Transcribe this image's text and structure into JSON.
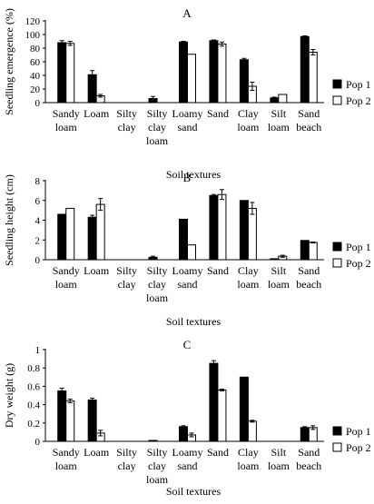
{
  "chart_data": [
    {
      "type": "bar",
      "title": "A",
      "xlabel": "Soil textures",
      "ylabel": "Seedling emergence (%)",
      "ylim": [
        0,
        120
      ],
      "yticks": [
        "0",
        "20",
        "40",
        "60",
        "80",
        "100",
        "120"
      ],
      "grid": false,
      "legend_position": "right",
      "categories": [
        [
          "Sandy",
          "loam"
        ],
        [
          "Loam"
        ],
        [
          "Silty",
          "clay"
        ],
        [
          "Silty",
          "clay",
          "loam"
        ],
        [
          "Loamy",
          "sand"
        ],
        [
          "Sand"
        ],
        [
          "Clay",
          "loam"
        ],
        [
          "Silt",
          "loam"
        ],
        [
          "Sand",
          "beach"
        ]
      ],
      "series": [
        {
          "name": "Pop 1",
          "color": "#000000",
          "values": [
            88,
            41,
            0,
            6,
            89,
            91,
            63,
            7,
            97
          ],
          "errors": [
            3,
            6,
            0,
            3,
            1,
            1,
            2,
            1,
            1
          ]
        },
        {
          "name": "Pop 2",
          "color": "#ffffff",
          "values": [
            87,
            10,
            0,
            0,
            71,
            86,
            24,
            12,
            74
          ],
          "errors": [
            3,
            2,
            0,
            0,
            0,
            3,
            6,
            0,
            4
          ]
        }
      ]
    },
    {
      "type": "bar",
      "title": "B",
      "xlabel": "Soil textures",
      "ylabel": "Seedling height (cm)",
      "ylim": [
        0,
        8
      ],
      "yticks": [
        "0",
        "2",
        "4",
        "6",
        "8"
      ],
      "grid": false,
      "legend_position": "right",
      "categories": [
        [
          "Sandy",
          "loam"
        ],
        [
          "Loam"
        ],
        [
          "Silty",
          "clay"
        ],
        [
          "Silty",
          "clay",
          "loam"
        ],
        [
          "Loamy",
          "sand"
        ],
        [
          "Sand"
        ],
        [
          "Clay",
          "loam"
        ],
        [
          "Silt",
          "loam"
        ],
        [
          "Sand",
          "beach"
        ]
      ],
      "series": [
        {
          "name": "Pop 1",
          "color": "#000000",
          "values": [
            4.6,
            4.3,
            0,
            0.25,
            4.1,
            6.5,
            6.0,
            0.1,
            1.95
          ],
          "errors": [
            0,
            0.2,
            0,
            0.1,
            0,
            0.1,
            0,
            0,
            0
          ]
        },
        {
          "name": "Pop 2",
          "color": "#ffffff",
          "values": [
            5.2,
            5.6,
            0,
            0,
            1.5,
            6.6,
            5.2,
            0.35,
            1.75
          ],
          "errors": [
            0,
            0.6,
            0,
            0,
            0,
            0.5,
            0.6,
            0.1,
            0.05
          ]
        }
      ]
    },
    {
      "type": "bar",
      "title": "C",
      "xlabel": "Soil textures",
      "ylabel": "Dry weight (g)",
      "ylim": [
        0,
        1
      ],
      "yticks": [
        "0",
        "0.2",
        "0.4",
        "0.6",
        "0.8",
        "1"
      ],
      "grid": false,
      "legend_position": "right",
      "categories": [
        [
          "Sandy",
          "loam"
        ],
        [
          "Loam"
        ],
        [
          "Silty",
          "clay"
        ],
        [
          "Silty",
          "clay",
          "loam"
        ],
        [
          "Loamy",
          "sand"
        ],
        [
          "Sand"
        ],
        [
          "Clay",
          "loam"
        ],
        [
          "Silt",
          "loam"
        ],
        [
          "Sand",
          "beach"
        ]
      ],
      "series": [
        {
          "name": "Pop 1",
          "color": "#000000",
          "values": [
            0.55,
            0.45,
            0,
            0.01,
            0.16,
            0.85,
            0.7,
            0,
            0.15
          ],
          "errors": [
            0.03,
            0.02,
            0,
            0,
            0.01,
            0.03,
            0,
            0,
            0.01
          ]
        },
        {
          "name": "Pop 2",
          "color": "#ffffff",
          "values": [
            0.44,
            0.09,
            0,
            0,
            0.07,
            0.56,
            0.22,
            0,
            0.15
          ],
          "errors": [
            0.02,
            0.03,
            0,
            0,
            0.02,
            0.01,
            0.01,
            0,
            0.02
          ]
        }
      ]
    }
  ]
}
